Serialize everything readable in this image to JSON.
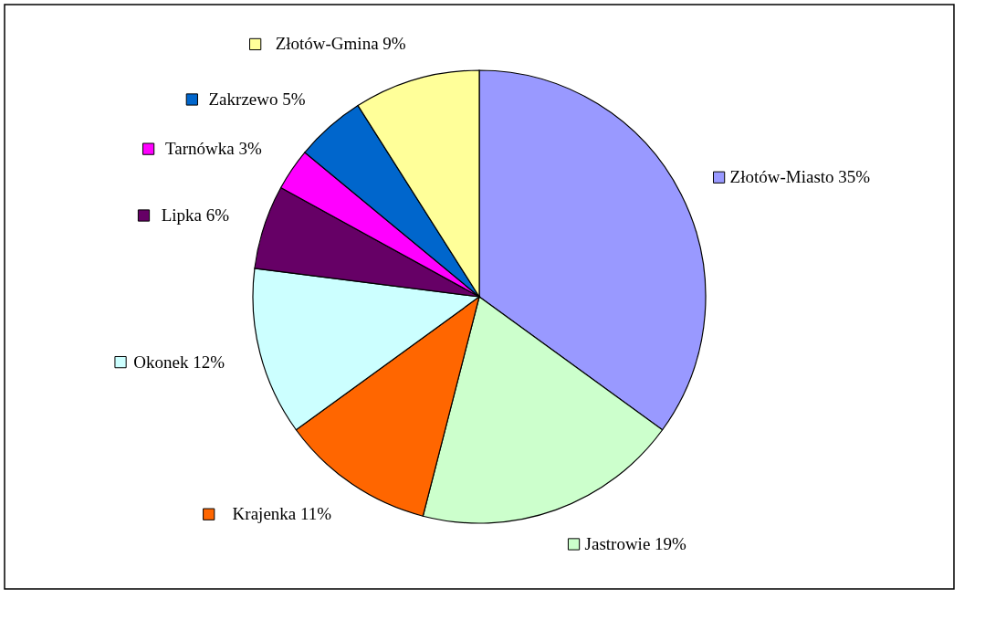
{
  "chart_data": {
    "type": "pie",
    "categories": [
      "Złotów-Miasto",
      "Jastrowie",
      "Krajenka",
      "Okonek",
      "Lipka",
      "Tarnówka",
      "Zakrzewo",
      "Złotów-Gmina"
    ],
    "values": [
      35,
      19,
      11,
      12,
      6,
      3,
      5,
      9
    ],
    "value_labels": [
      "35%",
      "19%",
      "11%",
      "12%",
      "6%",
      "3%",
      "5%",
      "9%"
    ],
    "colors": [
      "#9999ff",
      "#ccffcc",
      "#ff6600",
      "#ccffff",
      "#660066",
      "#ff00ff",
      "#0066cc",
      "#ffff99"
    ],
    "legend": "left"
  }
}
